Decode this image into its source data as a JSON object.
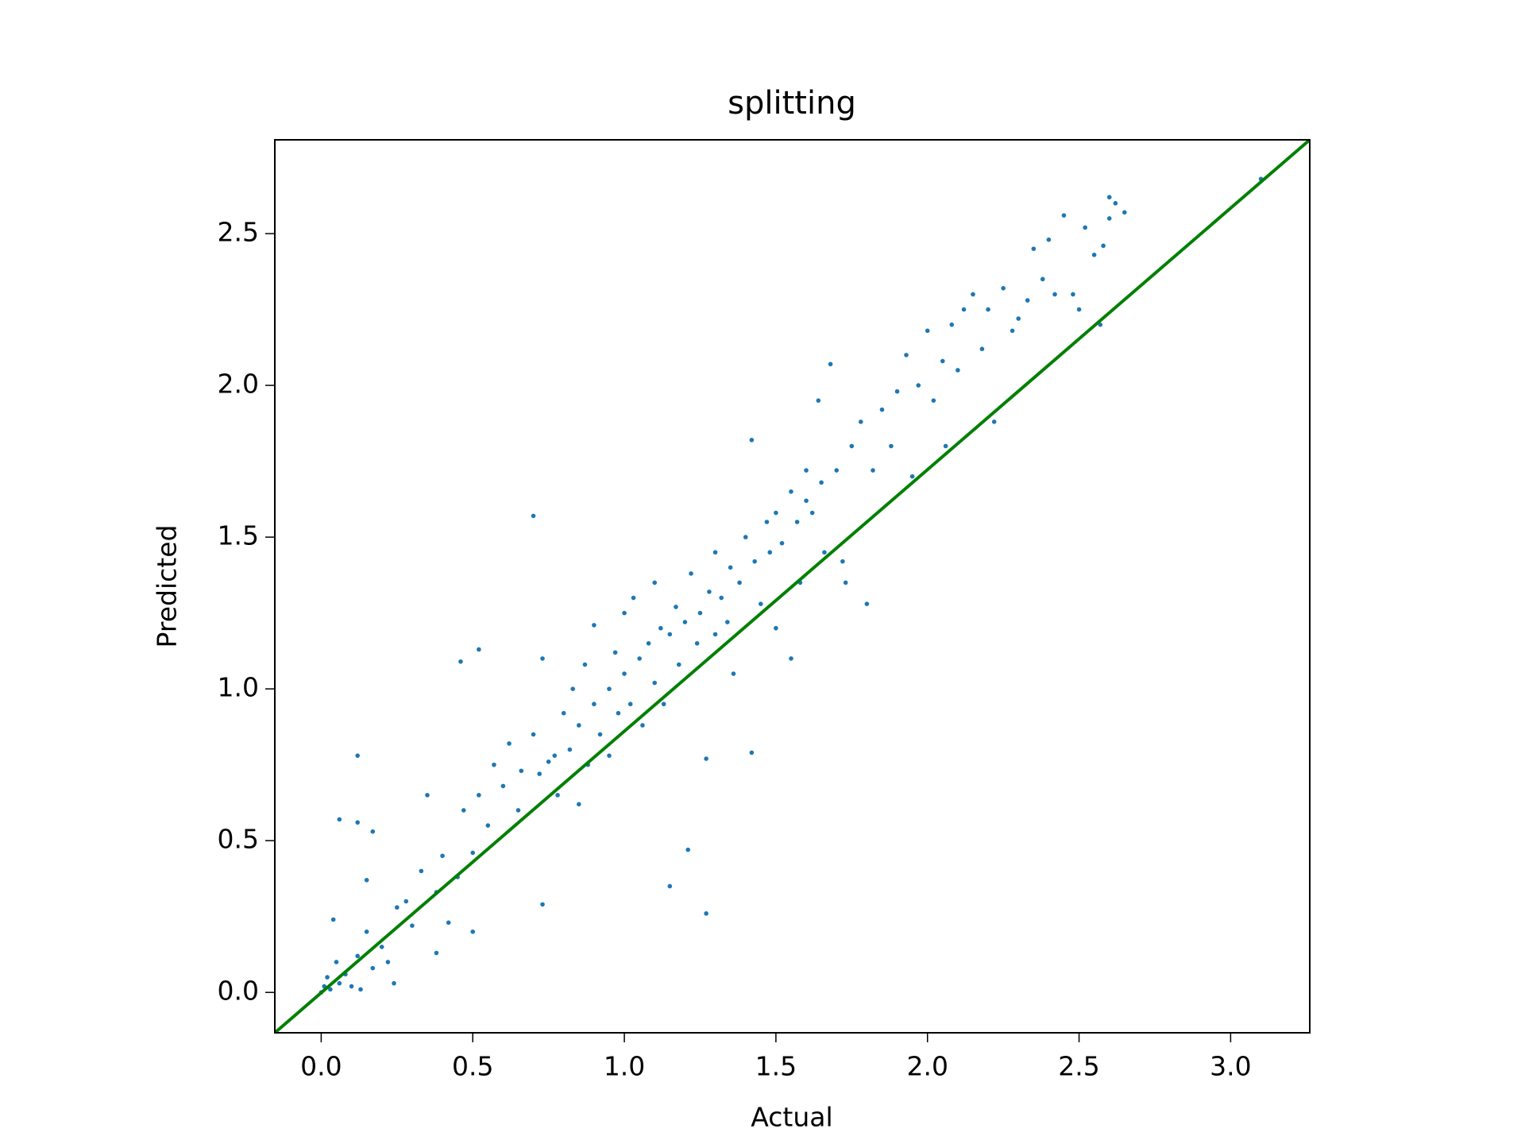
{
  "chart_data": {
    "type": "scatter",
    "title": "splitting",
    "x_label": "Actual",
    "y_label": "Predicted",
    "xlim": [
      -0.153,
      3.261
    ],
    "ylim": [
      -0.133,
      2.809
    ],
    "xticks": [
      {
        "value": 0,
        "label": "0.0"
      },
      0.5,
      {
        "value": 1,
        "label": "1.0"
      },
      1.5,
      {
        "value": 2,
        "label": "2.0"
      },
      2.5,
      {
        "value": 3,
        "label": "3.0"
      }
    ],
    "yticks": [
      {
        "value": 0,
        "label": "0.0"
      },
      0.5,
      {
        "value": 1,
        "label": "1.0"
      },
      1.5,
      {
        "value": 2,
        "label": "2.0"
      },
      2.5
    ],
    "series": [
      {
        "color": "#1f77b4",
        "x": [
          0,
          0.01,
          0.02,
          0.03,
          0.05,
          0.06,
          0.08,
          0.1,
          0.12,
          0.13,
          0.15,
          0.17,
          0.2,
          0.22,
          0.24,
          0.04,
          0.06,
          0.12,
          0.12,
          0.17,
          0.15,
          0.25,
          0.28,
          0.3,
          0.33,
          0.35,
          0.38,
          0.4,
          0.38,
          0.42,
          0.45,
          0.46,
          0.47,
          0.5,
          0.52,
          0.5,
          0.52,
          0.55,
          0.57,
          0.6,
          0.62,
          0.65,
          0.66,
          0.7,
          0.7,
          0.72,
          0.73,
          0.73,
          0.75,
          0.77,
          0.78,
          0.8,
          0.82,
          0.83,
          0.85,
          0.85,
          0.87,
          0.88,
          0.9,
          0.9,
          0.92,
          0.95,
          0.95,
          0.97,
          0.98,
          1.0,
          1.0,
          1.02,
          1.03,
          1.05,
          1.06,
          1.08,
          1.1,
          1.1,
          1.12,
          1.13,
          1.15,
          1.15,
          1.17,
          1.18,
          1.2,
          1.21,
          1.22,
          1.24,
          1.25,
          1.27,
          1.27,
          1.28,
          1.3,
          1.3,
          1.32,
          1.34,
          1.35,
          1.36,
          1.38,
          1.4,
          1.42,
          1.42,
          1.43,
          1.45,
          1.47,
          1.48,
          1.5,
          1.5,
          1.52,
          1.55,
          1.55,
          1.57,
          1.58,
          1.6,
          1.6,
          1.62,
          1.64,
          1.65,
          1.66,
          1.68,
          1.7,
          1.72,
          1.73,
          1.75,
          1.78,
          1.8,
          1.82,
          1.85,
          1.88,
          1.9,
          1.93,
          1.95,
          1.97,
          2.0,
          2.02,
          2.05,
          2.06,
          2.08,
          2.1,
          2.12,
          2.15,
          2.18,
          2.2,
          2.22,
          2.25,
          2.28,
          2.3,
          2.33,
          2.35,
          2.38,
          2.4,
          2.42,
          2.45,
          2.48,
          2.5,
          2.52,
          2.55,
          2.57,
          2.58,
          2.6,
          2.62,
          2.65,
          2.6,
          3.1
        ],
        "y": [
          0,
          0.02,
          0.05,
          0.01,
          0.1,
          0.03,
          0.06,
          0.02,
          0.12,
          0.01,
          0.2,
          0.08,
          0.15,
          0.1,
          0.03,
          0.24,
          0.57,
          0.78,
          0.56,
          0.53,
          0.37,
          0.28,
          0.3,
          0.22,
          0.4,
          0.65,
          0.33,
          0.45,
          0.13,
          0.23,
          0.38,
          1.09,
          0.6,
          0.46,
          0.65,
          0.2,
          1.13,
          0.55,
          0.75,
          0.68,
          0.82,
          0.6,
          0.73,
          1.57,
          0.85,
          0.72,
          1.1,
          0.29,
          0.76,
          0.78,
          0.65,
          0.92,
          0.8,
          1.0,
          0.88,
          0.62,
          1.08,
          0.75,
          0.95,
          1.21,
          0.85,
          1.0,
          0.78,
          1.12,
          0.92,
          1.05,
          1.25,
          0.95,
          1.3,
          1.1,
          0.88,
          1.15,
          1.02,
          1.35,
          1.2,
          0.95,
          1.18,
          0.35,
          1.27,
          1.08,
          1.22,
          0.47,
          1.38,
          1.15,
          1.25,
          0.26,
          0.77,
          1.32,
          1.18,
          1.45,
          1.3,
          1.22,
          1.4,
          1.05,
          1.35,
          1.5,
          1.82,
          0.79,
          1.42,
          1.28,
          1.55,
          1.45,
          1.58,
          1.2,
          1.48,
          1.65,
          1.1,
          1.55,
          1.35,
          1.62,
          1.72,
          1.58,
          1.95,
          1.68,
          1.45,
          2.07,
          1.72,
          1.42,
          1.35,
          1.8,
          1.88,
          1.28,
          1.72,
          1.92,
          1.8,
          1.98,
          2.1,
          1.7,
          2.0,
          2.18,
          1.95,
          2.08,
          1.8,
          2.2,
          2.05,
          2.25,
          2.3,
          2.12,
          2.25,
          1.88,
          2.32,
          2.18,
          2.22,
          2.28,
          2.45,
          2.35,
          2.48,
          2.3,
          2.56,
          2.3,
          2.25,
          2.52,
          2.43,
          2.2,
          2.46,
          2.62,
          2.6,
          2.57,
          2.55,
          2.68
        ]
      },
      {
        "color": "green",
        "x": [
          -0.153,
          3.261
        ],
        "y": [
          -0.133,
          2.809
        ]
      }
    ]
  }
}
